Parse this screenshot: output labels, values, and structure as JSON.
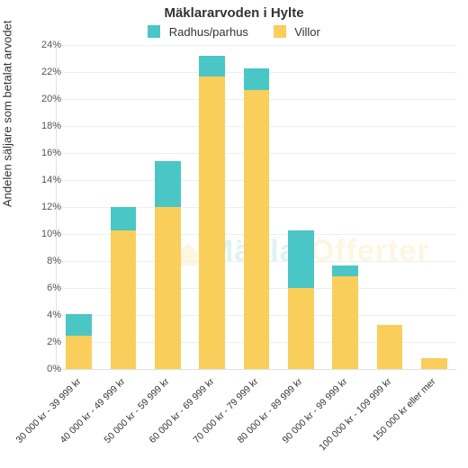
{
  "title": "Mäklararvoden i Hylte",
  "ylabel": "Andelen säljare som betalat arvodet",
  "legend": [
    {
      "label": "Radhus/parhus",
      "color": "#4bc6c6"
    },
    {
      "label": "Villor",
      "color": "#f9ce5a"
    }
  ],
  "chart": {
    "type": "stacked-bar",
    "ylim": [
      0,
      24
    ],
    "ytick_step": 2,
    "ytick_suffix": "%",
    "background_color": "#ffffff",
    "grid_color": "#eeeeee",
    "axis_color": "#e0e0e0",
    "bar_width_ratio": 0.58,
    "categories": [
      "30 000 kr - 39 999 kr",
      "40 000 kr - 49 999 kr",
      "50 000 kr - 59 999 kr",
      "60 000 kr - 69 999 kr",
      "70 000 kr - 79 999 kr",
      "80 000 kr - 89 999 kr",
      "90 000 kr - 99 999 kr",
      "100 000 kr - 109 999 kr",
      "150 000 kr eller mer"
    ],
    "series": [
      {
        "name": "Villor",
        "color": "#f9ce5a",
        "values": [
          2.5,
          10.3,
          12.0,
          21.7,
          20.7,
          6.0,
          6.9,
          3.3,
          0.8
        ]
      },
      {
        "name": "Radhus/parhus",
        "color": "#4bc6c6",
        "values": [
          1.6,
          1.7,
          3.4,
          1.5,
          1.6,
          4.3,
          0.8,
          0.0,
          0.0
        ]
      }
    ]
  },
  "watermark": {
    "part1": "Mäklar",
    "part2": "Offerter",
    "color1": "#4bc6c6",
    "color2": "#f9ce5a"
  },
  "fonts": {
    "title_size": 15,
    "legend_size": 13,
    "tick_size": 11,
    "ylabel_size": 13
  }
}
